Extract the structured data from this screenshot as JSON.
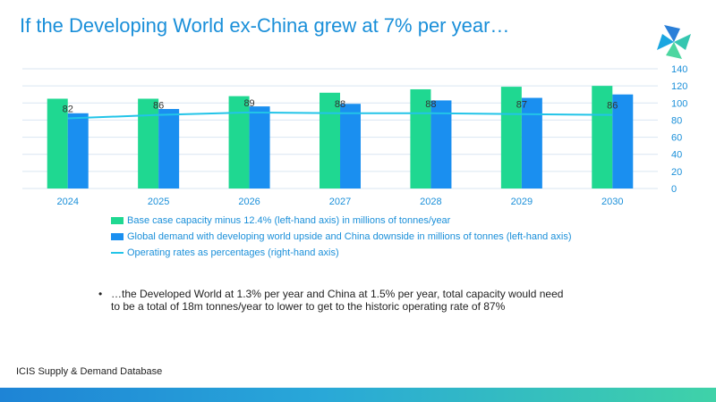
{
  "header": {
    "title": "If the Developing World ex-China grew at 7% per year…"
  },
  "logo": {
    "icon": "pinwheel-logo-icon",
    "colors": [
      "#2a7fd8",
      "#35c6b0",
      "#1aa6e0",
      "#4dd6a0"
    ]
  },
  "colors": {
    "capacity": "#1fd891",
    "demand": "#1a8ff0",
    "operating_rate": "#22c4e8",
    "title": "#1a8fd9",
    "grid": "#d9e6f2"
  },
  "chart_data": {
    "type": "bar",
    "categories": [
      "2024",
      "2025",
      "2026",
      "2027",
      "2028",
      "2029",
      "2030"
    ],
    "series": [
      {
        "name": "Base case capacity minus 12.4% (left-hand axis) in millions of tonnes/year",
        "type": "bar",
        "axis": "left",
        "values": [
          105,
          105,
          108,
          112,
          116,
          119,
          120
        ]
      },
      {
        "name": "Global demand with developing world upside and China downside in millions of tonnes (left-hand axis)",
        "type": "bar",
        "axis": "left",
        "values": [
          88,
          93,
          96,
          99,
          103,
          106,
          110
        ]
      },
      {
        "name": "Operating rates as percentages (right-hand axis)",
        "type": "line",
        "axis": "right",
        "values": [
          82,
          86,
          89,
          88,
          88,
          87,
          86
        ],
        "data_labels": [
          "82",
          "86",
          "89",
          "88",
          "88",
          "87",
          "86"
        ]
      }
    ],
    "y_axis": {
      "range": [
        0,
        140
      ],
      "ticks": [
        "0",
        "20",
        "40",
        "60",
        "80",
        "100",
        "120",
        "140"
      ],
      "position": "right"
    },
    "grid": true,
    "legend": "bottom"
  },
  "bullet": {
    "marker": "•",
    "text": "…the Developed World at 1.3% per year and China at 1.5% per year, total capacity would need to be a total of 18m tonnes/year to lower to get to the historic operating rate of 87%"
  },
  "footer": {
    "source": "ICIS Supply  & Demand Database"
  }
}
